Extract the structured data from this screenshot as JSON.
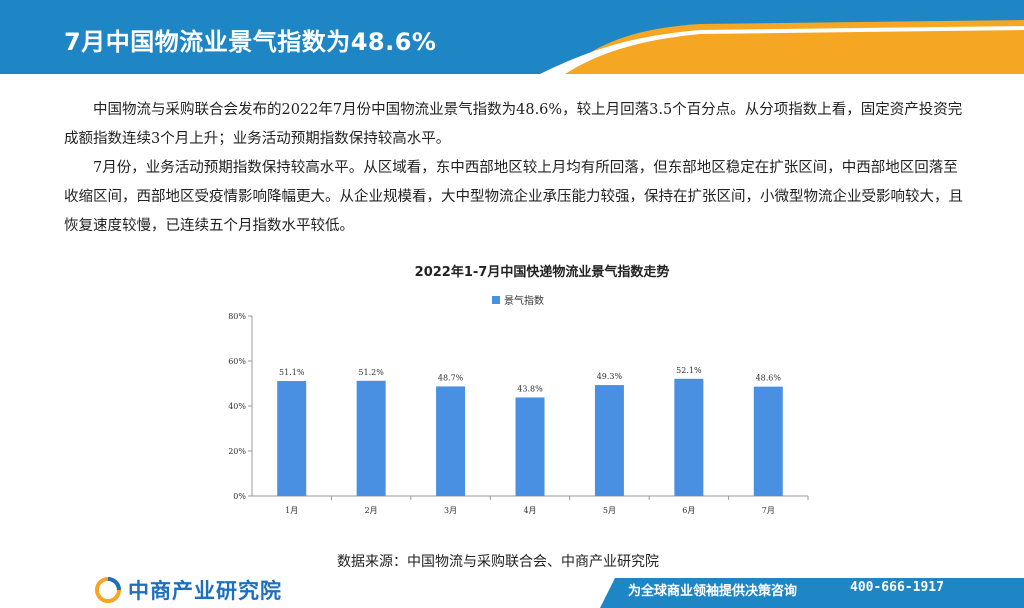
{
  "header": {
    "title": "7月中国物流业景气指数为48.6%"
  },
  "body": {
    "paragraph1": "中国物流与采购联合会发布的2022年7月份中国物流业景气指数为48.6%，较上月回落3.5个百分点。从分项指数上看，固定资产投资完成额指数连续3个月上升；业务活动预期指数保持较高水平。",
    "paragraph2": "7月份，业务活动预期指数保持较高水平。从区域看，东中西部地区较上月均有所回落，但东部地区稳定在扩张区间，中西部地区回落至收缩区间，西部地区受疫情影响降幅更大。从企业规模看，大中型物流企业承压能力较强，保持在扩张区间，小微型物流企业受影响较大，且恢复速度较慢，已连续五个月指数水平较低。"
  },
  "chart_data": {
    "type": "bar",
    "title": "2022年1-7月中国快递物流业景气指数走势",
    "legend": "top-center",
    "series": [
      {
        "name": "景气指数",
        "color": "#4a90e2",
        "values": [
          51.1,
          51.2,
          48.7,
          43.8,
          49.3,
          52.1,
          48.6
        ],
        "labels": [
          "51.1%",
          "51.2%",
          "48.7%",
          "43.8%",
          "49.3%",
          "52.1%",
          "48.6%"
        ]
      }
    ],
    "categories": [
      "1月",
      "2月",
      "3月",
      "4月",
      "5月",
      "6月",
      "7月"
    ],
    "yticks": [
      "0%",
      "20%",
      "40%",
      "60%",
      "80%"
    ],
    "ylim": [
      0,
      80
    ],
    "grid": false
  },
  "source": "数据来源：中国物流与采购联合会、中商产业研究院",
  "footer": {
    "brand": "中商产业研究院",
    "slogan": "为全球商业领袖提供决策咨询",
    "phone": "400-666-1917"
  },
  "colors": {
    "header_blue": "#1f86c5",
    "accent_orange": "#f5a623",
    "bar": "#4a90e2"
  }
}
